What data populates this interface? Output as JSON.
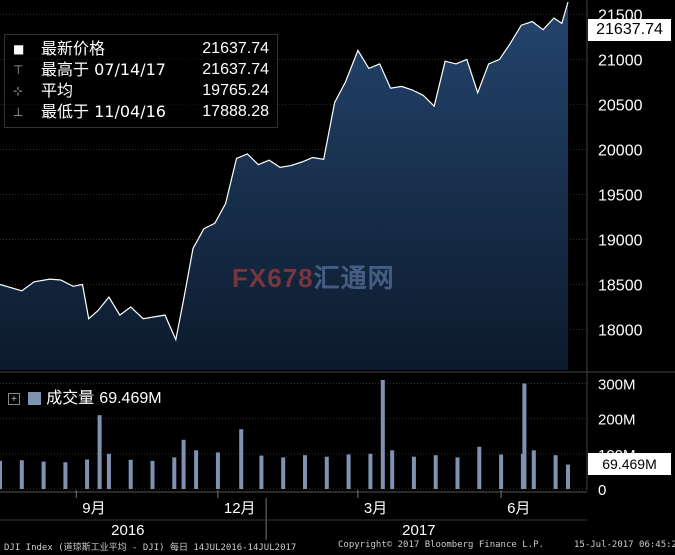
{
  "legend": {
    "last_label": "最新价格",
    "last_value": "21637.74",
    "high_label": "最高于 07/14/17",
    "high_value": "21637.74",
    "avg_label": "平均",
    "avg_value": "19765.24",
    "low_label": "最低于 11/04/16",
    "low_value": "17888.28"
  },
  "price_tag": "21637.74",
  "volume_legend": {
    "label": "成交量",
    "value": "69.469M"
  },
  "volume_tag": "69.469M",
  "watermark": {
    "brand": "FX678",
    "cn": "汇通网"
  },
  "footer": {
    "left": "DJI Index (道琼斯工业平均 - DJI)  每日 14JUL2016-14JUL2017",
    "center": "Copyright© 2017 Bloomberg Finance L.P.",
    "right": "15-Jul-2017 06:45:28"
  },
  "colors": {
    "area_top": "#24456e",
    "area_bottom": "#0c1a2c",
    "line": "#ffffff",
    "volume_bar": "#7f93b1",
    "grid": "#2e2e2e"
  },
  "chart_data": [
    {
      "type": "area",
      "series": [
        {
          "x": [
            "2016-07-14",
            "2016-07-28",
            "2016-08-05",
            "2016-08-15",
            "2016-08-22",
            "2016-08-30",
            "2016-09-05",
            "2016-09-09",
            "2016-09-15",
            "2016-09-22",
            "2016-09-29",
            "2016-10-06",
            "2016-10-14",
            "2016-10-21",
            "2016-10-28",
            "2016-11-04",
            "2016-11-09",
            "2016-11-15",
            "2016-11-22",
            "2016-11-29",
            "2016-12-06",
            "2016-12-13",
            "2016-12-20",
            "2016-12-27",
            "2017-01-03",
            "2017-01-10",
            "2017-01-17",
            "2017-01-24",
            "2017-01-31",
            "2017-02-07",
            "2017-02-14",
            "2017-02-21",
            "2017-03-01",
            "2017-03-08",
            "2017-03-15",
            "2017-03-22",
            "2017-03-29",
            "2017-04-05",
            "2017-04-12",
            "2017-04-19",
            "2017-04-26",
            "2017-05-03",
            "2017-05-10",
            "2017-05-17",
            "2017-05-24",
            "2017-05-31",
            "2017-06-07",
            "2017-06-14",
            "2017-06-21",
            "2017-06-28",
            "2017-07-05",
            "2017-07-10",
            "2017-07-14"
          ],
          "y": [
            18500,
            18430,
            18530,
            18560,
            18550,
            18480,
            18500,
            18120,
            18210,
            18360,
            18160,
            18250,
            18120,
            18140,
            18160,
            17888,
            18330,
            18900,
            19120,
            19180,
            19400,
            19900,
            19950,
            19830,
            19880,
            19800,
            19820,
            19860,
            19910,
            19890,
            20520,
            20750,
            21100,
            20900,
            20950,
            20680,
            20700,
            20660,
            20600,
            20480,
            20980,
            20950,
            21000,
            20630,
            20950,
            21000,
            21180,
            21380,
            21420,
            21330,
            21460,
            21400,
            21637.74
          ]
        }
      ],
      "ylim": [
        17550,
        21660
      ],
      "y_ticks": [
        "18000",
        "18500",
        "19000",
        "19500",
        "20000",
        "20500",
        "21000",
        "21500"
      ],
      "x_tick_labels": [
        "9月",
        "12月",
        "3月",
        "6月"
      ],
      "year_labels": [
        "2016",
        "2017"
      ]
    },
    {
      "type": "bar",
      "series": [
        {
          "x": [
            "2016-07-14",
            "2016-07-28",
            "2016-08-11",
            "2016-08-25",
            "2016-09-08",
            "2016-09-16",
            "2016-09-22",
            "2016-10-06",
            "2016-10-20",
            "2016-11-03",
            "2016-11-09",
            "2016-11-17",
            "2016-12-01",
            "2016-12-16",
            "2016-12-29",
            "2017-01-12",
            "2017-01-26",
            "2017-02-09",
            "2017-02-23",
            "2017-03-09",
            "2017-03-17",
            "2017-03-23",
            "2017-04-06",
            "2017-04-20",
            "2017-05-04",
            "2017-05-18",
            "2017-06-01",
            "2017-06-15",
            "2017-06-16",
            "2017-06-22",
            "2017-07-06",
            "2017-07-14"
          ],
          "y": [
            80,
            82,
            78,
            76,
            84,
            210,
            100,
            83,
            80,
            90,
            140,
            110,
            104,
            170,
            95,
            90,
            96,
            92,
            98,
            100,
            310,
            110,
            92,
            96,
            90,
            120,
            98,
            100,
            300,
            110,
            96,
            69.469
          ]
        }
      ],
      "ylim": [
        0,
        310
      ],
      "y_ticks": [
        "0",
        "100M",
        "200M",
        "300M"
      ]
    }
  ]
}
